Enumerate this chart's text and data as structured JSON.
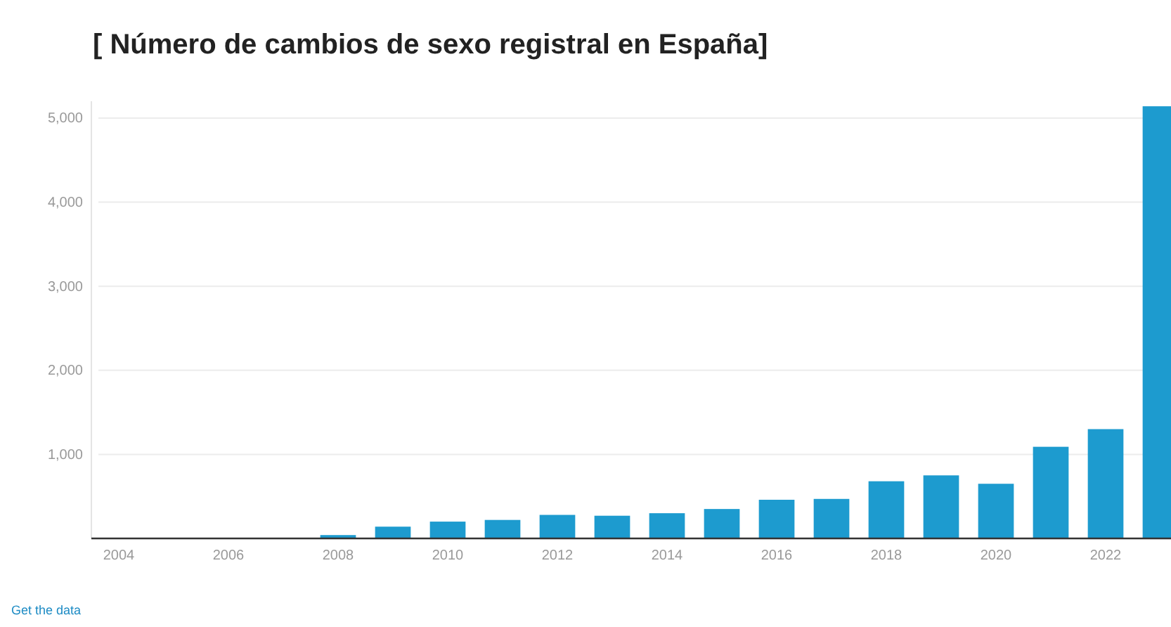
{
  "chart_data": {
    "type": "bar",
    "title": "[ Número de cambios de sexo registral en España]",
    "categories": [
      "2004",
      null,
      "2006",
      null,
      "2008",
      null,
      "2010",
      null,
      "2012",
      null,
      "2014",
      null,
      "2016",
      null,
      "2018",
      null,
      "2020",
      null,
      "2022",
      null
    ],
    "values": [
      0,
      0,
      0,
      0,
      40,
      140,
      200,
      220,
      280,
      270,
      300,
      350,
      460,
      470,
      680,
      750,
      650,
      1090,
      1300,
      5140
    ],
    "color": "#1d9bcf",
    "ylim": [
      0,
      5200
    ],
    "yticks": [
      {
        "value": 1000,
        "label": "1,000"
      },
      {
        "value": 2000,
        "label": "2,000"
      },
      {
        "value": 3000,
        "label": "3,000"
      },
      {
        "value": 4000,
        "label": "4,000"
      },
      {
        "value": 5000,
        "label": "5,000"
      }
    ],
    "grid": "y",
    "annotations": [
      "Get the data"
    ]
  }
}
